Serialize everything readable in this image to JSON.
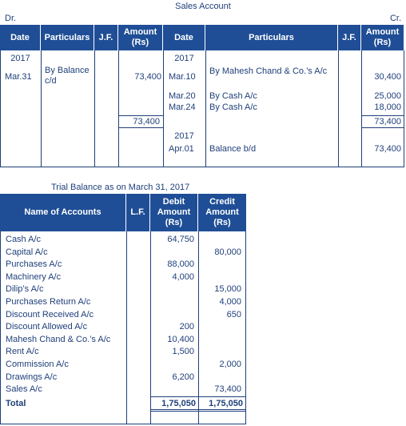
{
  "sales_account": {
    "title": "Sales Account",
    "dr": "Dr.",
    "cr": "Cr.",
    "headers": {
      "date_l": "Date",
      "particulars_l": "Particulars",
      "jf_l": "J.F.",
      "amount_l": "Amount (Rs)",
      "date_r": "Date",
      "particulars_r": "Particulars",
      "jf_r": "J.F.",
      "amount_r": "Amount (Rs)"
    },
    "left": {
      "year": "2017",
      "date": "Mar.31",
      "particulars": "By Balance c/d",
      "amount": "73,400",
      "total": "73,400"
    },
    "right": {
      "year": "2017",
      "rows": [
        {
          "date": "Mar.10",
          "particulars": "By Mahesh Chand & Co.’s A/c",
          "amount": "30,400"
        },
        {
          "date": "Mar.20",
          "particulars": "By Cash A/c",
          "amount": "25,000"
        },
        {
          "date": "Mar.24",
          "particulars": "By Cash A/c",
          "amount": "18,000"
        }
      ],
      "total": "73,400",
      "year2": "2017",
      "date2": "Apr.01",
      "particulars2": "Balance b/d",
      "amount2": "73,400"
    }
  },
  "trial_balance": {
    "title": "Trial Balance as on March 31, 2017",
    "headers": {
      "name": "Name of Accounts",
      "lf": "L.F.",
      "debit": "Debit Amount (Rs)",
      "credit": "Credit Amount (Rs)"
    },
    "rows": [
      {
        "name": "Cash A/c",
        "debit": "64,750",
        "credit": ""
      },
      {
        "name": "Capital A/c",
        "debit": "",
        "credit": "80,000"
      },
      {
        "name": "Purchases A/c",
        "debit": "88,000",
        "credit": ""
      },
      {
        "name": "Machinery A/c",
        "debit": "4,000",
        "credit": ""
      },
      {
        "name": "Dilip’s A/c",
        "debit": "",
        "credit": "15,000"
      },
      {
        "name": "Purchases Return A/c",
        "debit": "",
        "credit": "4,000"
      },
      {
        "name": "Discount Received A/c",
        "debit": "",
        "credit": "650"
      },
      {
        "name": "Discount Allowed A/c",
        "debit": "200",
        "credit": ""
      },
      {
        "name": "Mahesh Chand & Co.’s A/c",
        "debit": "10,400",
        "credit": ""
      },
      {
        "name": "Rent A/c",
        "debit": "1,500",
        "credit": ""
      },
      {
        "name": "Commission A/c",
        "debit": "",
        "credit": "2,000"
      },
      {
        "name": "Drawings A/c",
        "debit": "6,200",
        "credit": ""
      },
      {
        "name": "Sales A/c",
        "debit": "",
        "credit": "73,400"
      }
    ],
    "total": {
      "name": "Total",
      "debit": "1,75,050",
      "credit": "1,75,050"
    }
  }
}
